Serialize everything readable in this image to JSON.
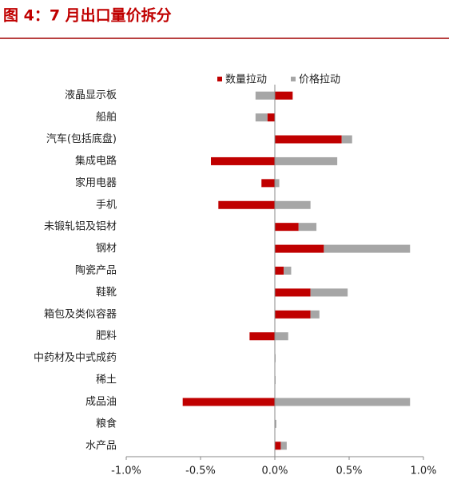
{
  "chart_data": {
    "type": "bar",
    "orientation": "horizontal",
    "stacked": true,
    "title": "图 4：7 月出口量价拆分",
    "categories": [
      "液晶显示板",
      "船舶",
      "汽车(包括底盘)",
      "集成电路",
      "家用电器",
      "手机",
      "未锻轧铝及铝材",
      "钢材",
      "陶瓷产品",
      "鞋靴",
      "箱包及类似容器",
      "肥料",
      "中药材及中式成药",
      "稀土",
      "成品油",
      "粮食",
      "水产品"
    ],
    "series": [
      {
        "name": "数量拉动",
        "color": "#c00000",
        "values": [
          0.12,
          -0.05,
          0.45,
          -0.43,
          -0.09,
          -0.38,
          0.16,
          0.33,
          0.06,
          0.24,
          0.24,
          -0.17,
          0,
          0,
          -0.62,
          0,
          0.04
        ]
      },
      {
        "name": "价格拉动",
        "color": "#a6a6a6",
        "values": [
          -0.13,
          -0.08,
          0.07,
          0.42,
          0.03,
          0.24,
          0.12,
          0.58,
          0.05,
          0.25,
          0.06,
          0.09,
          0.005,
          0.005,
          0.91,
          0.01,
          0.04
        ]
      }
    ],
    "xlim": [
      -1,
      1
    ],
    "xticks": [
      {
        "value": -1,
        "label": "-1.0%"
      },
      {
        "value": -0.5,
        "label": "-0.5%"
      },
      {
        "value": 0,
        "label": "0.0%"
      },
      {
        "value": 0.5,
        "label": "0.5%"
      },
      {
        "value": 1,
        "label": "1.0%"
      }
    ],
    "legend": "top"
  }
}
